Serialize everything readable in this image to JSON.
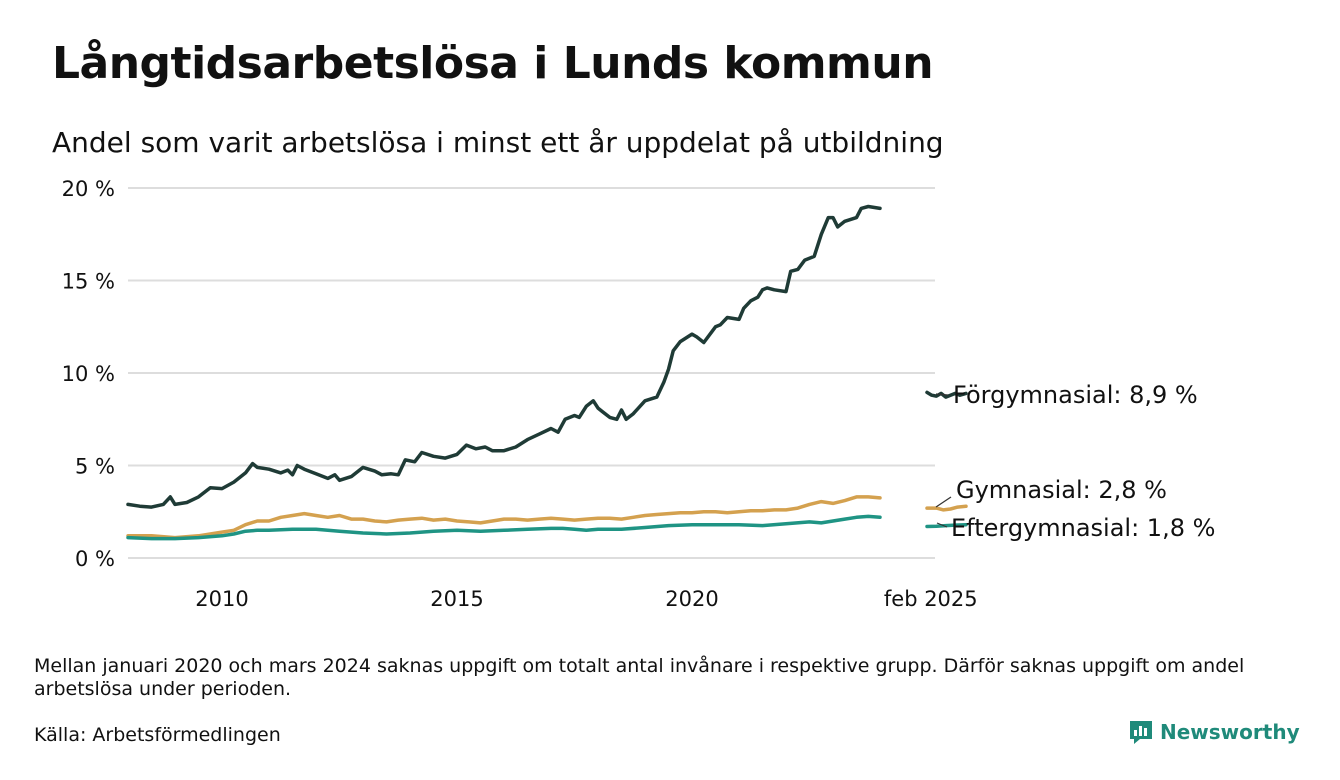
{
  "header": {
    "title": "Långtidsarbetslösa i Lunds kommun",
    "subtitle": "Andel som varit arbetslösa i minst ett år uppdelat på utbildning"
  },
  "footer": {
    "note": "Mellan januari 2020 och mars 2024 saknas uppgift om totalt antal invånare i respektive grupp. Därför saknas uppgift om andel arbetslösa under perioden.",
    "source": "Källa: Arbetsförmedlingen",
    "brand": "Newsworthy",
    "brand_icon": "bar-chart-speech-bubble-icon"
  },
  "chart_data": {
    "type": "line",
    "xlabel": "",
    "ylabel": "",
    "xlim": [
      2008.0,
      2025.17
    ],
    "ylim": [
      0,
      20
    ],
    "grid": true,
    "yticks": [
      {
        "value": 0,
        "label": "0 %"
      },
      {
        "value": 5,
        "label": "5 %"
      },
      {
        "value": 10,
        "label": "10 %"
      },
      {
        "value": 15,
        "label": "15 %"
      },
      {
        "value": 20,
        "label": "20 %"
      }
    ],
    "xticks": [
      {
        "value": 2010,
        "label": "2010"
      },
      {
        "value": 2015,
        "label": "2015"
      },
      {
        "value": 2020,
        "label": "2020"
      },
      {
        "value": 2025.08,
        "label": "feb 2025"
      }
    ],
    "series": [
      {
        "name": "Förgymnasial",
        "end_label": "Förgymnasial: 8,9 %",
        "color": "#1f3b36",
        "segments": [
          [
            [
              2008.0,
              2.9
            ],
            [
              2008.25,
              2.8
            ],
            [
              2008.5,
              2.75
            ],
            [
              2008.75,
              2.9
            ],
            [
              2008.9,
              3.3
            ],
            [
              2009.0,
              2.9
            ],
            [
              2009.25,
              3.0
            ],
            [
              2009.5,
              3.3
            ],
            [
              2009.75,
              3.8
            ],
            [
              2010.0,
              3.75
            ],
            [
              2010.25,
              4.1
            ],
            [
              2010.5,
              4.6
            ],
            [
              2010.65,
              5.1
            ],
            [
              2010.75,
              4.9
            ],
            [
              2011.0,
              4.8
            ],
            [
              2011.25,
              4.6
            ],
            [
              2011.4,
              4.75
            ],
            [
              2011.5,
              4.5
            ],
            [
              2011.6,
              5.0
            ],
            [
              2011.75,
              4.8
            ],
            [
              2012.0,
              4.55
            ],
            [
              2012.25,
              4.3
            ],
            [
              2012.4,
              4.5
            ],
            [
              2012.5,
              4.2
            ],
            [
              2012.75,
              4.4
            ],
            [
              2013.0,
              4.9
            ],
            [
              2013.25,
              4.7
            ],
            [
              2013.4,
              4.5
            ],
            [
              2013.6,
              4.55
            ],
            [
              2013.75,
              4.5
            ],
            [
              2013.9,
              5.3
            ],
            [
              2014.1,
              5.2
            ],
            [
              2014.25,
              5.7
            ],
            [
              2014.5,
              5.5
            ],
            [
              2014.75,
              5.4
            ],
            [
              2015.0,
              5.6
            ],
            [
              2015.2,
              6.1
            ],
            [
              2015.4,
              5.9
            ],
            [
              2015.6,
              6.0
            ],
            [
              2015.75,
              5.8
            ],
            [
              2016.0,
              5.8
            ],
            [
              2016.25,
              6.0
            ],
            [
              2016.5,
              6.4
            ],
            [
              2016.75,
              6.7
            ],
            [
              2017.0,
              7.0
            ],
            [
              2017.15,
              6.8
            ],
            [
              2017.3,
              7.5
            ],
            [
              2017.5,
              7.7
            ],
            [
              2017.6,
              7.6
            ],
            [
              2017.75,
              8.2
            ],
            [
              2017.9,
              8.5
            ],
            [
              2018.0,
              8.1
            ],
            [
              2018.1,
              7.9
            ],
            [
              2018.25,
              7.6
            ],
            [
              2018.4,
              7.5
            ],
            [
              2018.5,
              8.0
            ],
            [
              2018.6,
              7.5
            ],
            [
              2018.75,
              7.8
            ],
            [
              2019.0,
              8.5
            ],
            [
              2019.25,
              8.7
            ],
            [
              2019.4,
              9.5
            ],
            [
              2019.5,
              10.2
            ],
            [
              2019.6,
              11.2
            ],
            [
              2019.75,
              11.7
            ],
            [
              2020.0,
              12.1
            ],
            [
              2020.1,
              11.95
            ],
            [
              2020.25,
              11.65
            ],
            [
              2020.5,
              12.5
            ],
            [
              2020.6,
              12.6
            ],
            [
              2020.75,
              13.0
            ],
            [
              2021.0,
              12.9
            ],
            [
              2021.1,
              13.5
            ],
            [
              2021.25,
              13.9
            ],
            [
              2021.4,
              14.1
            ],
            [
              2021.5,
              14.5
            ],
            [
              2021.6,
              14.6
            ],
            [
              2021.75,
              14.5
            ],
            [
              2022.0,
              14.4
            ],
            [
              2022.1,
              15.5
            ],
            [
              2022.25,
              15.6
            ],
            [
              2022.4,
              16.1
            ],
            [
              2022.6,
              16.3
            ],
            [
              2022.75,
              17.5
            ],
            [
              2022.9,
              18.4
            ],
            [
              2023.0,
              18.4
            ],
            [
              2023.1,
              17.9
            ],
            [
              2023.25,
              18.2
            ],
            [
              2023.5,
              18.4
            ],
            [
              2023.6,
              18.9
            ],
            [
              2023.75,
              19.0
            ],
            [
              2024.0,
              18.9
            ]
          ],
          [
            [
              2025.0,
              8.95
            ],
            [
              2025.1,
              8.8
            ],
            [
              2025.2,
              8.75
            ],
            [
              2025.3,
              8.9
            ],
            [
              2025.4,
              8.7
            ],
            [
              2025.5,
              8.8
            ],
            [
              2025.6,
              8.9
            ],
            [
              2025.7,
              8.8
            ],
            [
              2025.83,
              8.9
            ]
          ]
        ]
      },
      {
        "name": "Gymnasial",
        "end_label": "Gymnasial: 2,8 %",
        "color": "#d4a14f",
        "segments": [
          [
            [
              2008.0,
              1.2
            ],
            [
              2008.5,
              1.2
            ],
            [
              2009.0,
              1.1
            ],
            [
              2009.5,
              1.2
            ],
            [
              2010.0,
              1.4
            ],
            [
              2010.25,
              1.5
            ],
            [
              2010.5,
              1.8
            ],
            [
              2010.75,
              2.0
            ],
            [
              2011.0,
              2.0
            ],
            [
              2011.25,
              2.2
            ],
            [
              2011.5,
              2.3
            ],
            [
              2011.75,
              2.4
            ],
            [
              2012.0,
              2.3
            ],
            [
              2012.25,
              2.2
            ],
            [
              2012.5,
              2.3
            ],
            [
              2012.75,
              2.1
            ],
            [
              2013.0,
              2.1
            ],
            [
              2013.25,
              2.0
            ],
            [
              2013.5,
              1.95
            ],
            [
              2013.75,
              2.05
            ],
            [
              2014.0,
              2.1
            ],
            [
              2014.25,
              2.15
            ],
            [
              2014.5,
              2.05
            ],
            [
              2014.75,
              2.1
            ],
            [
              2015.0,
              2.0
            ],
            [
              2015.25,
              1.95
            ],
            [
              2015.5,
              1.9
            ],
            [
              2015.75,
              2.0
            ],
            [
              2016.0,
              2.1
            ],
            [
              2016.25,
              2.1
            ],
            [
              2016.5,
              2.05
            ],
            [
              2016.75,
              2.1
            ],
            [
              2017.0,
              2.15
            ],
            [
              2017.25,
              2.1
            ],
            [
              2017.5,
              2.05
            ],
            [
              2017.75,
              2.1
            ],
            [
              2018.0,
              2.15
            ],
            [
              2018.25,
              2.15
            ],
            [
              2018.5,
              2.1
            ],
            [
              2018.75,
              2.2
            ],
            [
              2019.0,
              2.3
            ],
            [
              2019.25,
              2.35
            ],
            [
              2019.5,
              2.4
            ],
            [
              2019.75,
              2.45
            ],
            [
              2020.0,
              2.45
            ],
            [
              2020.25,
              2.5
            ],
            [
              2020.5,
              2.5
            ],
            [
              2020.75,
              2.45
            ],
            [
              2021.0,
              2.5
            ],
            [
              2021.25,
              2.55
            ],
            [
              2021.5,
              2.55
            ],
            [
              2021.75,
              2.6
            ],
            [
              2022.0,
              2.6
            ],
            [
              2022.25,
              2.7
            ],
            [
              2022.5,
              2.9
            ],
            [
              2022.75,
              3.05
            ],
            [
              2023.0,
              2.95
            ],
            [
              2023.25,
              3.1
            ],
            [
              2023.5,
              3.3
            ],
            [
              2023.75,
              3.3
            ],
            [
              2024.0,
              3.25
            ]
          ],
          [
            [
              2025.0,
              2.7
            ],
            [
              2025.2,
              2.7
            ],
            [
              2025.35,
              2.6
            ],
            [
              2025.5,
              2.65
            ],
            [
              2025.65,
              2.75
            ],
            [
              2025.83,
              2.8
            ]
          ]
        ]
      },
      {
        "name": "Eftergymnasial",
        "end_label": "Eftergymnasial: 1,8 %",
        "color": "#1f9484",
        "segments": [
          [
            [
              2008.0,
              1.1
            ],
            [
              2008.5,
              1.05
            ],
            [
              2009.0,
              1.05
            ],
            [
              2009.5,
              1.1
            ],
            [
              2010.0,
              1.2
            ],
            [
              2010.25,
              1.3
            ],
            [
              2010.5,
              1.45
            ],
            [
              2010.75,
              1.5
            ],
            [
              2011.0,
              1.5
            ],
            [
              2011.5,
              1.55
            ],
            [
              2012.0,
              1.55
            ],
            [
              2012.25,
              1.5
            ],
            [
              2012.5,
              1.45
            ],
            [
              2012.75,
              1.4
            ],
            [
              2013.0,
              1.35
            ],
            [
              2013.5,
              1.3
            ],
            [
              2014.0,
              1.35
            ],
            [
              2014.5,
              1.45
            ],
            [
              2015.0,
              1.5
            ],
            [
              2015.5,
              1.45
            ],
            [
              2016.0,
              1.5
            ],
            [
              2016.5,
              1.55
            ],
            [
              2017.0,
              1.6
            ],
            [
              2017.25,
              1.6
            ],
            [
              2017.5,
              1.55
            ],
            [
              2017.75,
              1.5
            ],
            [
              2018.0,
              1.55
            ],
            [
              2018.5,
              1.55
            ],
            [
              2019.0,
              1.65
            ],
            [
              2019.5,
              1.75
            ],
            [
              2020.0,
              1.8
            ],
            [
              2020.5,
              1.8
            ],
            [
              2021.0,
              1.8
            ],
            [
              2021.5,
              1.75
            ],
            [
              2022.0,
              1.85
            ],
            [
              2022.5,
              1.95
            ],
            [
              2022.75,
              1.9
            ],
            [
              2023.0,
              2.0
            ],
            [
              2023.25,
              2.1
            ],
            [
              2023.5,
              2.2
            ],
            [
              2023.75,
              2.25
            ],
            [
              2024.0,
              2.2
            ]
          ],
          [
            [
              2025.0,
              1.7
            ],
            [
              2025.2,
              1.72
            ],
            [
              2025.4,
              1.75
            ],
            [
              2025.6,
              1.78
            ],
            [
              2025.83,
              1.8
            ]
          ]
        ]
      }
    ]
  }
}
